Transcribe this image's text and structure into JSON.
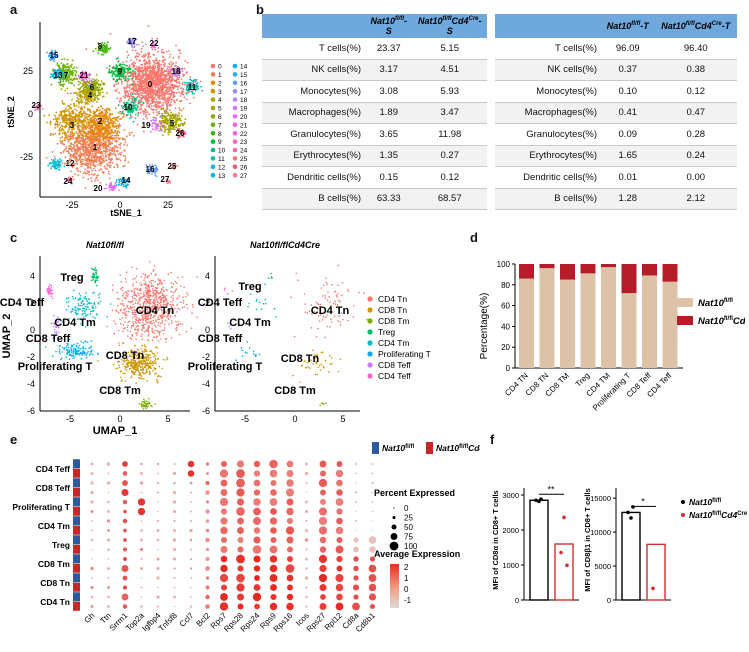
{
  "panel_labels": {
    "a": "a",
    "b": "b",
    "c": "c",
    "d": "d",
    "e": "e",
    "f": "f"
  },
  "panel_a": {
    "xlabel": "tSNE_1",
    "ylabel": "tSNE_2",
    "xticks": [
      "-25",
      "0",
      "25"
    ],
    "yticks": [
      "25",
      "0",
      "-25"
    ],
    "legend": [
      {
        "id": "0",
        "color": "#f8766d"
      },
      {
        "id": "1",
        "color": "#f27d52"
      },
      {
        "id": "2",
        "color": "#e58700"
      },
      {
        "id": "3",
        "color": "#cd9600"
      },
      {
        "id": "4",
        "color": "#b79f00"
      },
      {
        "id": "5",
        "color": "#a3a500"
      },
      {
        "id": "6",
        "color": "#8cab00"
      },
      {
        "id": "7",
        "color": "#6bb100"
      },
      {
        "id": "8",
        "color": "#39b600"
      },
      {
        "id": "9",
        "color": "#00ba38"
      },
      {
        "id": "10",
        "color": "#00bf7d"
      },
      {
        "id": "11",
        "color": "#00c0af"
      },
      {
        "id": "12",
        "color": "#00bcd8"
      },
      {
        "id": "13",
        "color": "#00b8e7"
      },
      {
        "id": "14",
        "color": "#00b0f6"
      },
      {
        "id": "15",
        "color": "#35a2ff"
      },
      {
        "id": "16",
        "color": "#619cff"
      },
      {
        "id": "17",
        "color": "#9590ff"
      },
      {
        "id": "18",
        "color": "#b983ff"
      },
      {
        "id": "19",
        "color": "#d575fe"
      },
      {
        "id": "20",
        "color": "#e76bf3"
      },
      {
        "id": "21",
        "color": "#f564e3"
      },
      {
        "id": "22",
        "color": "#fd61d1"
      },
      {
        "id": "23",
        "color": "#ff64b0"
      },
      {
        "id": "24",
        "color": "#ff6a98"
      },
      {
        "id": "25",
        "color": "#f17e6d"
      },
      {
        "id": "26",
        "color": "#e85c7a"
      },
      {
        "id": "27",
        "color": "#ff7b91"
      }
    ],
    "cluster_labels": [
      "0",
      "1",
      "2",
      "3",
      "4",
      "5",
      "6",
      "7",
      "8",
      "9",
      "10",
      "11",
      "12",
      "13",
      "14",
      "15",
      "16",
      "17",
      "18",
      "19",
      "20",
      "21",
      "22",
      "23",
      "24",
      "25",
      "26",
      "27"
    ]
  },
  "panel_b": {
    "table_s": {
      "headers": [
        "",
        "Nat10fl/fl-S",
        "Nat10fl/flCd4Cre-S"
      ],
      "rows": [
        [
          "T cells(%)",
          "23.37",
          "5.15"
        ],
        [
          "NK cells(%)",
          "3.17",
          "4.51"
        ],
        [
          "Monocytes(%)",
          "3.08",
          "5.93"
        ],
        [
          "Macrophages(%)",
          "1.89",
          "3.47"
        ],
        [
          "Granulocytes(%)",
          "3.65",
          "11.98"
        ],
        [
          "Erythrocytes(%)",
          "1.35",
          "0.27"
        ],
        [
          "Dendritic cells(%)",
          "0.15",
          "0.12"
        ],
        [
          "B cells(%)",
          "63.33",
          "68.57"
        ]
      ]
    },
    "table_t": {
      "headers": [
        "",
        "Nat10fl/fl-T",
        "Nat10fl/flCd4Cre-T"
      ],
      "rows": [
        [
          "T cells(%)",
          "96.09",
          "96.40"
        ],
        [
          "NK cells(%)",
          "0.37",
          "0.38"
        ],
        [
          "Monocytes(%)",
          "0.10",
          "0.12"
        ],
        [
          "Macrophages(%)",
          "0.41",
          "0.47"
        ],
        [
          "Granulocytes(%)",
          "0.09",
          "0.28"
        ],
        [
          "Erythrocytes(%)",
          "1.65",
          "0.24"
        ],
        [
          "Dendritic cells(%)",
          "0.01",
          "0.00"
        ],
        [
          "B cells(%)",
          "1.28",
          "2.12"
        ]
      ]
    }
  },
  "panel_c": {
    "left_title": "Nat10fl/fl",
    "right_title": "Nat10fl/flCd4Cre",
    "xlabel": "UMAP_1",
    "ylabel": "UMAP_2",
    "xticks": [
      "-5",
      "0",
      "5"
    ],
    "yticks": [
      "4",
      "2",
      "0",
      "-2",
      "-4",
      "-6"
    ],
    "cluster_labels": [
      "Treg",
      "CD4 Teff",
      "CD4 Tn",
      "CD4 Tm",
      "CD8 Teff",
      "CD8 Tn",
      "Proliferating T",
      "CD8 Tm"
    ],
    "legend": [
      {
        "label": "CD4 Tn",
        "color": "#f8766d"
      },
      {
        "label": "CD8 Tn",
        "color": "#cd9600"
      },
      {
        "label": "CD8 Tm",
        "color": "#7cae00"
      },
      {
        "label": "Treg",
        "color": "#00be67"
      },
      {
        "label": "CD4 Tm",
        "color": "#00bfc4"
      },
      {
        "label": "Proliferating T",
        "color": "#00a9ff"
      },
      {
        "label": "CD8 Teff",
        "color": "#c77cff"
      },
      {
        "label": "CD4 Teff",
        "color": "#ff61cc"
      }
    ]
  },
  "chart_data": {
    "type": "bar",
    "stacked": true,
    "ylabel": "Percentage(%)",
    "ylim": [
      0,
      100
    ],
    "yticks": [
      "0",
      "20",
      "40",
      "60",
      "80",
      "100"
    ],
    "categories": [
      "CD4 TN",
      "CD8 TN",
      "CD8 TM",
      "Treg",
      "CD4 TM",
      "Proliferating T",
      "CD8 Teff",
      "CD4 Teff"
    ],
    "series": [
      {
        "name": "Nat10fl/fl",
        "color": "#dcc2a6",
        "values": [
          86,
          96,
          85,
          91,
          97,
          72,
          89,
          83
        ]
      },
      {
        "name": "Nat10fl/flCd4Cre",
        "color": "#b71c2a",
        "values": [
          14,
          4,
          15,
          9,
          3,
          28,
          11,
          17
        ]
      }
    ],
    "legend": [
      "Nat10fl/fl",
      "Nat10fl/flCd4Cre"
    ]
  },
  "panel_e": {
    "genes": [
      "Gh",
      "Ttn",
      "Srrm1",
      "Top2a",
      "Igfbp4",
      "Tnfsf8",
      "Ccl7",
      "Bcl2",
      "Rps7",
      "Rps28",
      "Rps24",
      "Rps9",
      "Rps16",
      "Icos",
      "Rps27",
      "Rpl12",
      "Cd8a",
      "Cd8b1"
    ],
    "groups": [
      "CD4 Teff",
      "CD8 Teff",
      "Proliferating T",
      "CD4 Tm",
      "Treg",
      "CD8 Tm",
      "CD8 Tn",
      "CD4 Tn"
    ],
    "legend_genotype": [
      "Nat10fl/fl",
      "Nat10fl/flCd4Cre"
    ],
    "legend_genotype_colors": [
      "#2c5aa0",
      "#c62828"
    ],
    "pct_title": "Percent Expressed",
    "pct_values": [
      "0",
      "25",
      "50",
      "75",
      "100"
    ],
    "avg_title": "Average Expression",
    "avg_values": [
      "2",
      "1",
      "0",
      "-1"
    ]
  },
  "panel_f": {
    "left": {
      "ylabel": "MFI of CD8α in CD8+ T cells",
      "yticks": [
        "0",
        "1000",
        "2000",
        "3000"
      ],
      "sig": "**",
      "values": [
        2850,
        1600
      ]
    },
    "right": {
      "ylabel": "MFI of CD8β1 in CD8+ T cells",
      "yticks": [
        "0",
        "5000",
        "10000",
        "15000"
      ],
      "sig": "*",
      "values": [
        12900,
        8200
      ]
    },
    "legend": [
      "Nat10fl/fl",
      "Nat10fl/flCd4Cre"
    ]
  }
}
